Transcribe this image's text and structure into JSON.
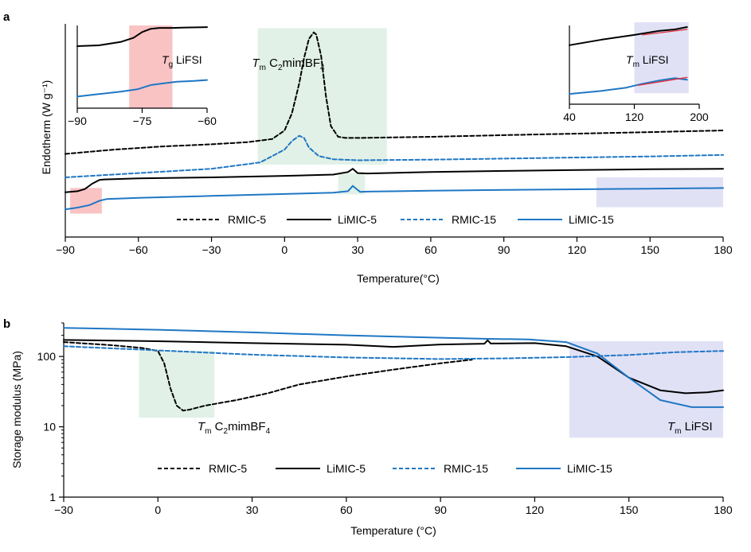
{
  "colors": {
    "rmic5": "#000000",
    "limic5": "#000000",
    "rmic15": "#1f77c4",
    "limic15": "#1f77c4",
    "green_band": "#dcefe3",
    "red_band": "#f8b9ba",
    "purple_band": "#dcdcf5",
    "fit_red": "#e0303a"
  },
  "chart_data": [
    {
      "id": "a",
      "type": "line",
      "panel_label": "a",
      "xlabel": "Temperature(°C)",
      "ylabel": "Endotherm (W g⁻¹)",
      "xlim": [
        -90,
        180
      ],
      "ylim": [
        0,
        100
      ],
      "xticks": [
        "−90",
        "−60",
        "−30",
        "0",
        "30",
        "60",
        "90",
        "120",
        "150",
        "180"
      ],
      "xtick_values": [
        -90,
        -60,
        -30,
        0,
        30,
        60,
        90,
        120,
        150,
        180
      ],
      "legend": [
        "RMIC-5",
        "LiMIC-5",
        "RMIC-15",
        "LiMIC-15"
      ],
      "legend_placement": "bottom-center",
      "annotation": {
        "prefix": "T",
        "sub1": "m",
        "text1": " C",
        "sub2": "2",
        "text2": "mimBF",
        "sub3": "4"
      },
      "bands": [
        {
          "name": "tm-c2mimbf4",
          "x0": -11,
          "x1": 42,
          "y0": 34,
          "y1": 98
        },
        {
          "name": "tg-lifsi",
          "x0": -88,
          "x1": -75,
          "y0": 11,
          "y1": 23
        },
        {
          "name": "tm-lifsi",
          "x0": 128,
          "x1": 180,
          "y0": 14,
          "y1": 28
        },
        {
          "name": "rmic5-peak-region",
          "x0": 22,
          "x1": 33,
          "y0": 20,
          "y1": 30
        }
      ],
      "series": [
        {
          "name": "RMIC-5",
          "style": "dashed",
          "color_key": "rmic5",
          "x": [
            -90,
            -70,
            -50,
            -30,
            -15,
            -5,
            0,
            3,
            6,
            8,
            10,
            12,
            13,
            15,
            17,
            19,
            22,
            25,
            30,
            60,
            90,
            120,
            150,
            180
          ],
          "y": [
            39,
            41,
            42.5,
            43.5,
            44.5,
            46,
            50,
            58,
            72,
            84,
            93,
            96,
            95,
            85,
            66,
            52,
            47,
            46.5,
            46.5,
            47,
            47.8,
            48.5,
            49.2,
            50
          ]
        },
        {
          "name": "LiMIC-5",
          "style": "solid",
          "color_key": "limic5",
          "x": [
            -90,
            -85,
            -82,
            -79,
            -76,
            -74,
            -60,
            -30,
            0,
            20,
            26,
            28,
            30,
            34,
            60,
            90,
            120,
            150,
            180
          ],
          "y": [
            21,
            21.5,
            22.5,
            25,
            26.8,
            27,
            27.5,
            28,
            28.7,
            29.3,
            30.5,
            32,
            30,
            29.8,
            30.5,
            31,
            31.4,
            31.8,
            32
          ]
        },
        {
          "name": "RMIC-15",
          "style": "dashed",
          "color_key": "rmic15",
          "x": [
            -90,
            -60,
            -30,
            -10,
            0,
            3,
            6,
            8,
            10,
            14,
            20,
            30,
            60,
            90,
            120,
            150,
            180
          ],
          "y": [
            28,
            30,
            32,
            35,
            41,
            45,
            47.5,
            46.5,
            42,
            38,
            36.5,
            36,
            36.3,
            36.8,
            37.3,
            37.8,
            38.5
          ]
        },
        {
          "name": "LiMIC-15",
          "style": "solid",
          "color_key": "limic15",
          "x": [
            -90,
            -85,
            -80,
            -76,
            -73,
            -60,
            -30,
            0,
            20,
            26,
            28,
            29,
            31,
            34,
            60,
            90,
            120,
            150,
            180
          ],
          "y": [
            13,
            13.8,
            15,
            17,
            17.8,
            18.4,
            19.3,
            20.2,
            20.8,
            21.5,
            24,
            23,
            21.2,
            21.3,
            21.7,
            22.1,
            22.4,
            22.7,
            23
          ]
        }
      ]
    },
    {
      "id": "a-inset-1",
      "type": "line",
      "xlim": [
        -90,
        -60
      ],
      "ylim": [
        0,
        100
      ],
      "xticks": [
        "−90",
        "−75",
        "−60"
      ],
      "xtick_values": [
        -90,
        -75,
        -60
      ],
      "annotation": {
        "prefix": "T",
        "sub1": "g",
        "text1": " LiFSI"
      },
      "bands": [
        {
          "name": "tg-lifsi-inset",
          "x0": -78,
          "x1": -68,
          "y0": 0,
          "y1": 100
        }
      ],
      "series": [
        {
          "name": "LiMIC-5",
          "style": "solid",
          "color_key": "limic5",
          "x": [
            -90,
            -85,
            -80,
            -77,
            -75,
            -73,
            -71,
            -68,
            -65,
            -60
          ],
          "y": [
            75,
            76,
            80,
            85,
            92,
            96,
            97,
            97,
            97.5,
            98
          ]
        },
        {
          "name": "LiMIC-15",
          "style": "solid",
          "color_key": "limic15",
          "x": [
            -90,
            -85,
            -80,
            -76,
            -73,
            -70,
            -67,
            -63,
            -60
          ],
          "y": [
            14,
            17,
            20,
            23,
            28,
            30,
            32,
            33,
            34
          ]
        }
      ]
    },
    {
      "id": "a-inset-2",
      "type": "line",
      "xlim": [
        40,
        200
      ],
      "ylim": [
        0,
        100
      ],
      "xticks": [
        "40",
        "120",
        "200"
      ],
      "xtick_values": [
        40,
        120,
        200
      ],
      "annotation": {
        "prefix": "T",
        "sub1": "m",
        "text1": " LiFSI"
      },
      "bands": [
        {
          "name": "tm-lifsi-inset",
          "x0": 120,
          "x1": 187,
          "y0": 14,
          "y1": 104
        }
      ],
      "series": [
        {
          "name": "LiMIC-5",
          "style": "solid",
          "color_key": "limic5",
          "x": [
            40,
            80,
            120,
            150,
            170,
            185
          ],
          "y": [
            75,
            82,
            88,
            93,
            95,
            98
          ]
        },
        {
          "name": "LiMIC-15",
          "style": "solid",
          "color_key": "limic15",
          "x": [
            40,
            80,
            110,
            130,
            150,
            170,
            185
          ],
          "y": [
            13,
            17,
            21,
            26,
            30,
            33,
            31
          ]
        },
        {
          "name": "fit-upper",
          "style": "solid",
          "color_key": "fit_red",
          "x": [
            130,
            185
          ],
          "y": [
            88,
            95
          ]
        },
        {
          "name": "fit-lower",
          "style": "solid",
          "color_key": "fit_red",
          "x": [
            125,
            185
          ],
          "y": [
            24,
            34
          ]
        }
      ]
    },
    {
      "id": "b",
      "type": "line",
      "panel_label": "b",
      "xlabel": "Temperature (°C)",
      "ylabel": "Storage modulus (MPa)",
      "xlim": [
        -30,
        180
      ],
      "yscale": "log",
      "ylim": [
        1,
        300
      ],
      "xticks": [
        "−30",
        "0",
        "30",
        "60",
        "90",
        "120",
        "150",
        "180"
      ],
      "xtick_values": [
        -30,
        0,
        30,
        60,
        90,
        120,
        150,
        180
      ],
      "yticks": [
        "1",
        "10",
        "100"
      ],
      "ytick_values": [
        1,
        10,
        100
      ],
      "legend": [
        "RMIC-5",
        "LiMIC-5",
        "RMIC-15",
        "LiMIC-15"
      ],
      "legend_placement": "bottom-center",
      "annotation_left": {
        "prefix": "T",
        "sub1": "m",
        "text1": " C",
        "sub2": "2",
        "text2": "mimBF",
        "sub3": "4"
      },
      "annotation_right": {
        "prefix": "T",
        "sub1": "m",
        "text1": " LiFSI"
      },
      "bands": [
        {
          "name": "tm-c2mimbf4",
          "x0": -6,
          "x1": 18,
          "y0": 13.5,
          "y1": 120
        },
        {
          "name": "tm-lifsi",
          "x0": 131,
          "x1": 180,
          "y0": 7,
          "y1": 165
        }
      ],
      "series": [
        {
          "name": "RMIC-5",
          "style": "dashed",
          "color_key": "rmic5",
          "x": [
            -30,
            -15,
            -5,
            0,
            2,
            4,
            6,
            8,
            10,
            15,
            25,
            35,
            45,
            60,
            75,
            90,
            100
          ],
          "y": [
            160,
            145,
            132,
            120,
            80,
            35,
            20,
            17,
            17.5,
            20,
            24,
            30,
            40,
            52,
            65,
            80,
            90
          ]
        },
        {
          "name": "LiMIC-5",
          "style": "solid",
          "color_key": "limic5",
          "x": [
            -30,
            0,
            30,
            60,
            75,
            90,
            104,
            105,
            106,
            120,
            130,
            140,
            150,
            160,
            168,
            175,
            180
          ],
          "y": [
            172,
            165,
            155,
            147,
            137,
            148,
            152,
            170,
            153,
            155,
            140,
            100,
            50,
            33,
            30,
            31,
            33
          ]
        },
        {
          "name": "RMIC-15",
          "style": "dashed",
          "color_key": "rmic15",
          "x": [
            -30,
            0,
            30,
            60,
            90,
            110,
            130,
            150,
            165,
            180
          ],
          "y": [
            140,
            122,
            106,
            97,
            92,
            94,
            98,
            105,
            115,
            120
          ]
        },
        {
          "name": "LiMIC-15",
          "style": "solid",
          "color_key": "limic15",
          "x": [
            -30,
            0,
            30,
            60,
            90,
            105,
            118,
            130,
            140,
            150,
            160,
            170,
            180
          ],
          "y": [
            255,
            240,
            220,
            200,
            185,
            178,
            175,
            160,
            110,
            50,
            24,
            19,
            19
          ]
        }
      ]
    }
  ]
}
